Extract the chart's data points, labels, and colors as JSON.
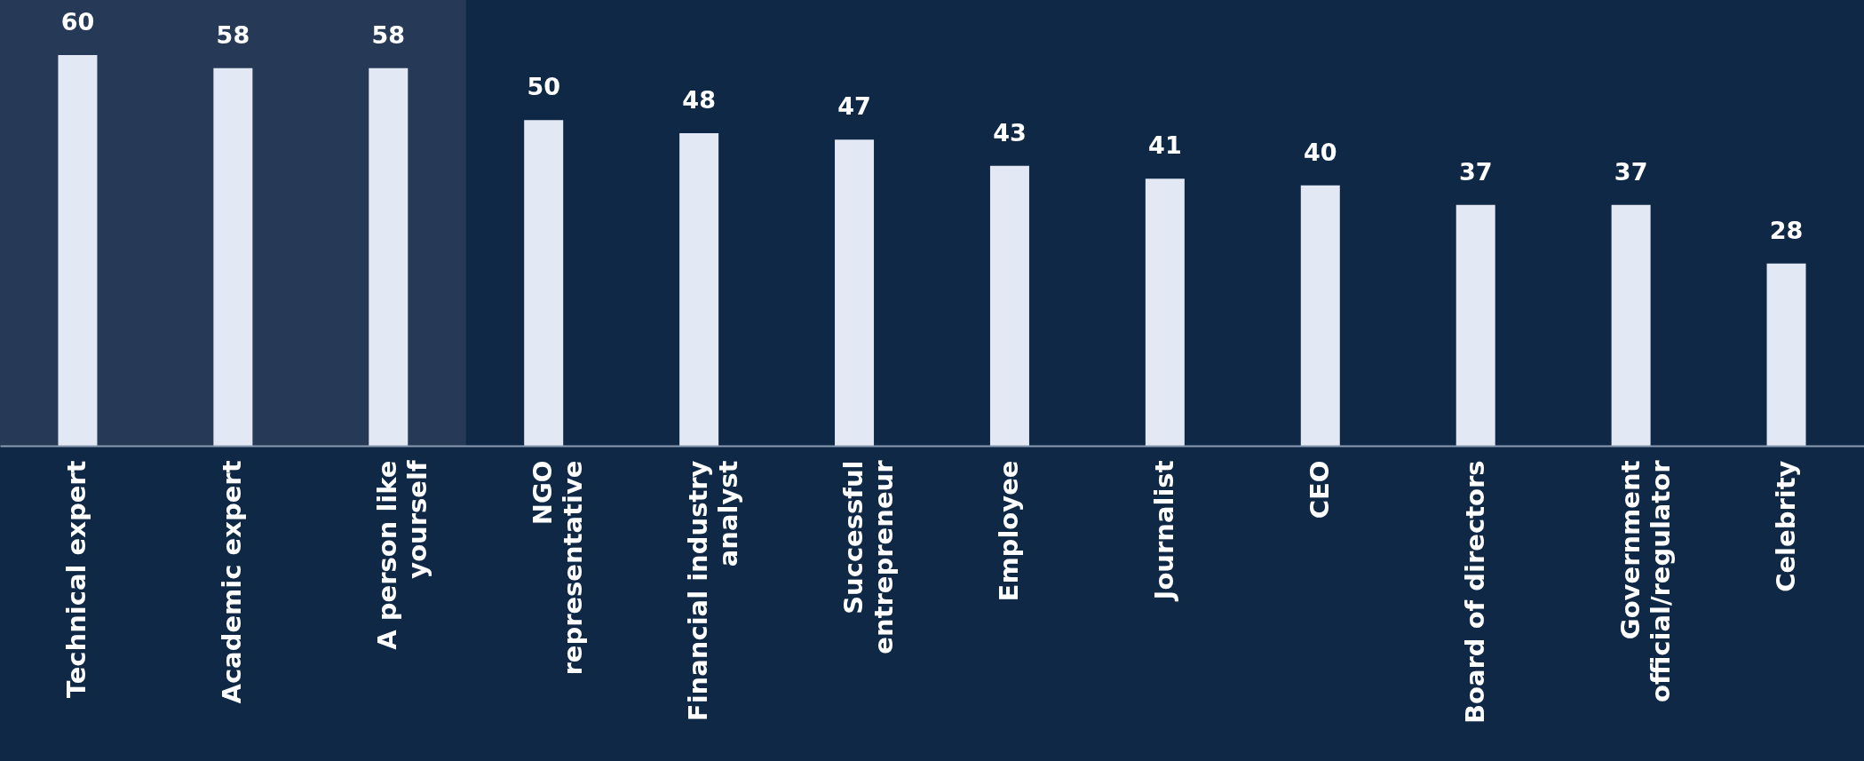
{
  "chart_data": {
    "type": "bar",
    "categories": [
      "Technical expert",
      "Academic expert",
      "A person like\nyourself",
      "NGO\nrepresentative",
      "Financial industry\nanalyst",
      "Successful\nentrepreneur",
      "Employee",
      "Journalist",
      "CEO",
      "Board of directors",
      "Government\nofficial/regulator",
      "Celebrity"
    ],
    "values": [
      60,
      58,
      58,
      50,
      48,
      47,
      43,
      41,
      40,
      37,
      37,
      28
    ],
    "color": "#e2e9f5",
    "data_labels": true,
    "bands": [
      {
        "axis": "x",
        "from": "Technical expert",
        "to": "A person like\nyourself",
        "color": "#263a57"
      }
    ]
  }
}
